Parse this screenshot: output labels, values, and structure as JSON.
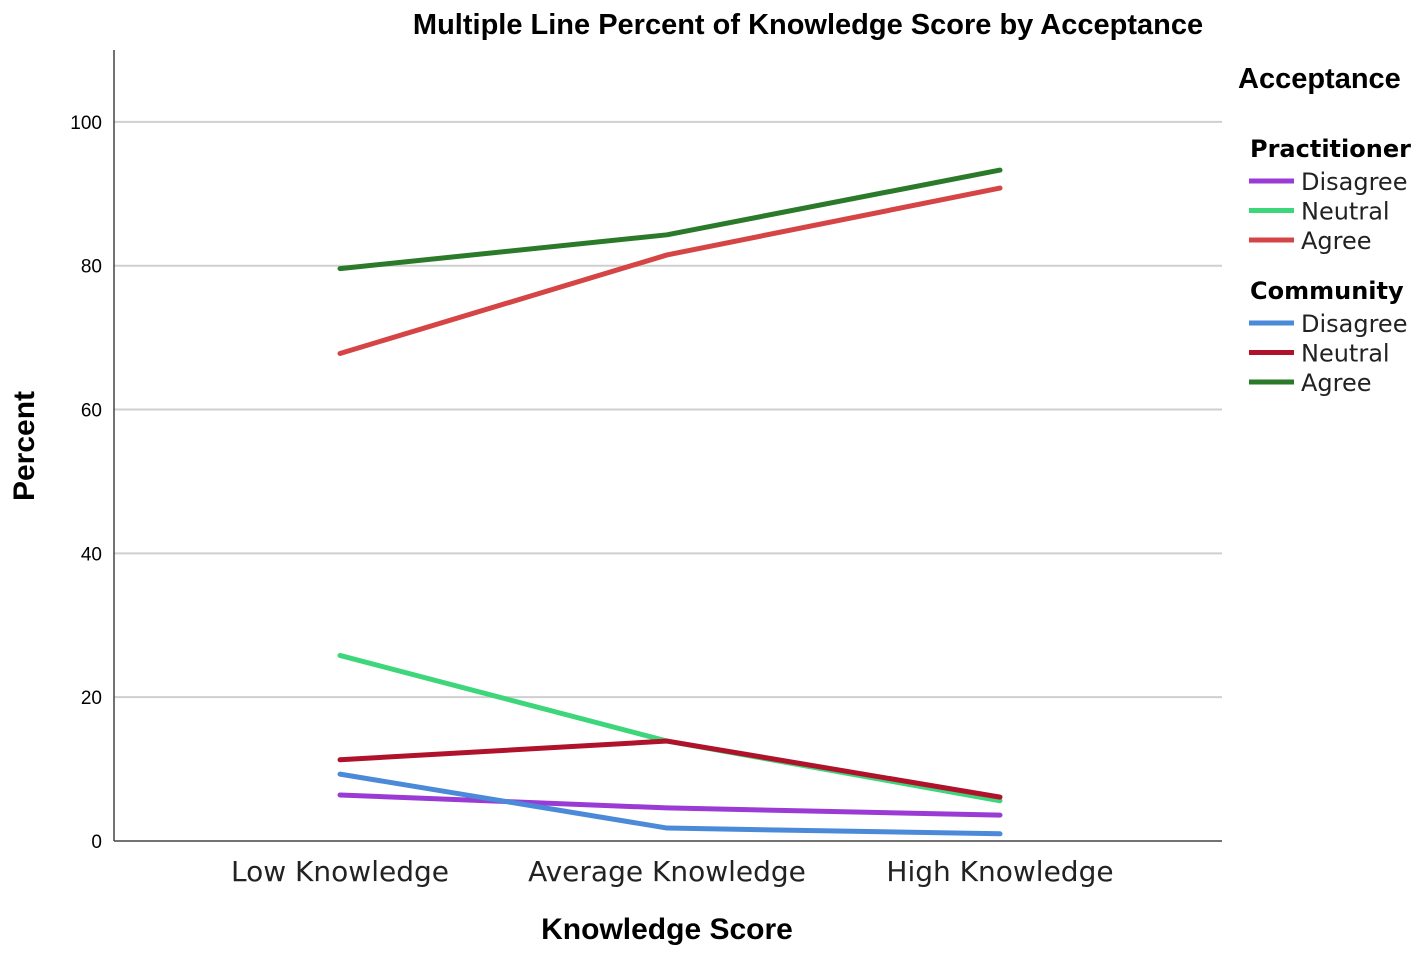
{
  "chart_data": {
    "type": "line",
    "title": "Multiple Line Percent of Knowledge Score by Acceptance",
    "xlabel": "Knowledge Score",
    "ylabel": "Percent",
    "categories": [
      "Low Knowledge",
      "Average Knowledge",
      "High Knowledge"
    ],
    "ylim": [
      0,
      110
    ],
    "yticks": [
      "0",
      "20",
      "40",
      "60",
      "80",
      "100"
    ],
    "grid": true,
    "legend": {
      "title": "Acceptance",
      "placement": "right",
      "groups": [
        {
          "name": "Practitioner",
          "series_index": [
            0,
            1,
            2
          ]
        },
        {
          "name": "Community",
          "series_index": [
            3,
            4,
            5
          ]
        }
      ]
    },
    "series": [
      {
        "name": "Disagree",
        "group": "Practitioner",
        "color": "#9b3bd6",
        "values": [
          6.4,
          4.6,
          3.6
        ]
      },
      {
        "name": "Neutral",
        "group": "Practitioner",
        "color": "#3ed67a",
        "values": [
          25.8,
          13.9,
          5.6
        ]
      },
      {
        "name": "Agree",
        "group": "Practitioner",
        "color": "#d64545",
        "values": [
          67.8,
          81.5,
          90.8
        ]
      },
      {
        "name": "Disagree",
        "group": "Community",
        "color": "#4a8ad8",
        "values": [
          9.3,
          1.8,
          1.0
        ]
      },
      {
        "name": "Neutral",
        "group": "Community",
        "color": "#b0122c",
        "values": [
          11.3,
          13.9,
          6.1
        ]
      },
      {
        "name": "Agree",
        "group": "Community",
        "color": "#2a7a2a",
        "values": [
          79.6,
          84.3,
          93.3
        ]
      }
    ]
  }
}
